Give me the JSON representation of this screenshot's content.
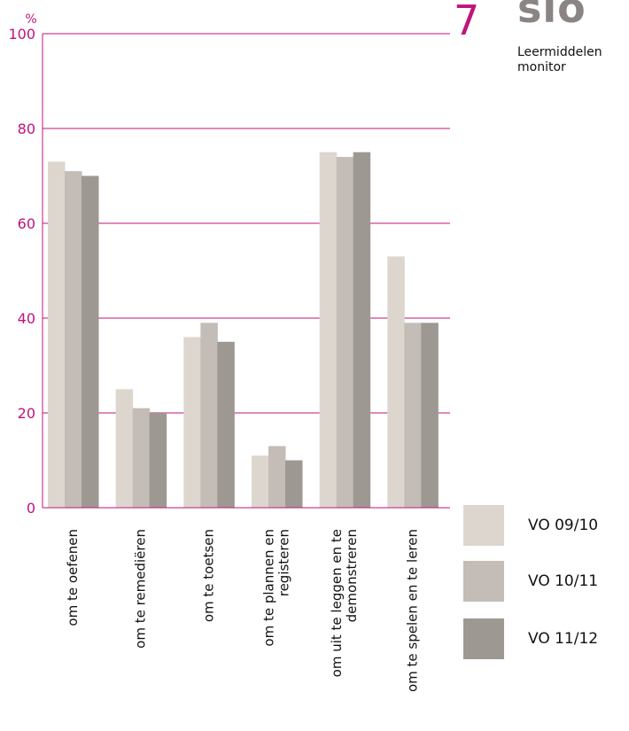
{
  "page": {
    "number": "7",
    "brand": "slo",
    "subtitle_lines": [
      "Leermiddelen",
      "monitor"
    ]
  },
  "colors": {
    "accent": "#c0137a",
    "grid": "#c0137a",
    "brand": "#8a8582"
  },
  "chart_data": {
    "type": "bar",
    "categories": [
      [
        "om te oefenen"
      ],
      [
        "om te remediëren"
      ],
      [
        "om te toetsen"
      ],
      [
        "om te plannen en",
        "registeren"
      ],
      [
        "om uit te leggen en te",
        "demonstreren"
      ],
      [
        "om te spelen en te leren"
      ]
    ],
    "series": [
      {
        "name": "VO 09/10",
        "color": "#ddd6cf",
        "values": [
          73,
          25,
          36,
          11,
          75,
          53
        ]
      },
      {
        "name": "VO 10/11",
        "color": "#c4bcb6",
        "values": [
          71,
          21,
          39,
          13,
          74,
          39
        ]
      },
      {
        "name": "VO 11/12",
        "color": "#9e9893",
        "values": [
          70,
          20,
          35,
          10,
          75,
          39
        ]
      }
    ],
    "ylabel": "%",
    "ylim": [
      0,
      100
    ],
    "yticks": [
      0,
      20,
      40,
      60,
      80,
      100
    ],
    "grid": true,
    "legend_position": "bottom-right"
  }
}
